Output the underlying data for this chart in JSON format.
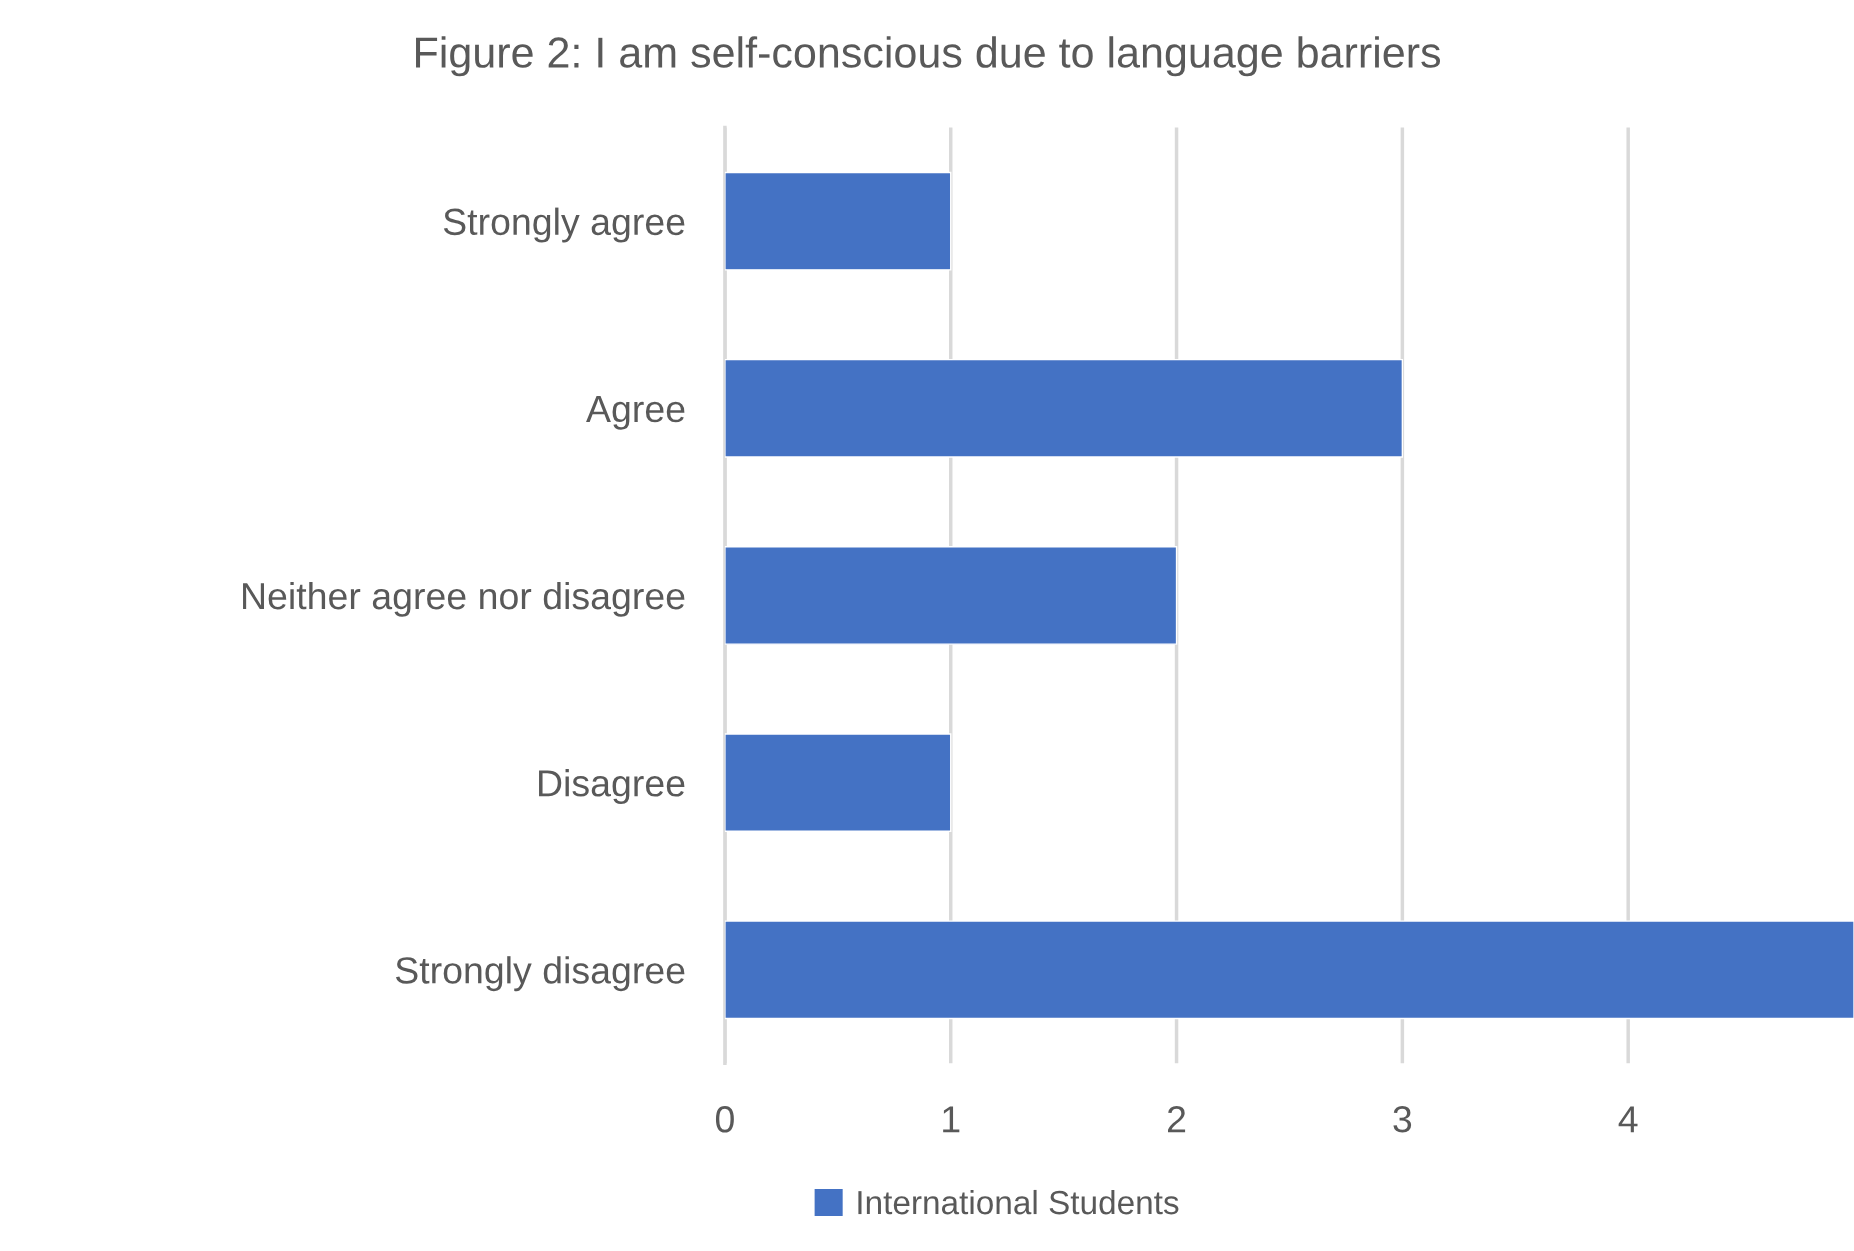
{
  "chart_data": {
    "type": "bar",
    "orientation": "horizontal",
    "title": "Figure 2: I am self-conscious due to language barriers",
    "categories": [
      "Strongly agree",
      "Agree",
      "Neither agree nor disagree",
      "Disagree",
      "Strongly disagree"
    ],
    "series": [
      {
        "name": "International Students",
        "color": "#4472c4",
        "values": [
          1,
          3,
          2,
          1,
          5
        ]
      }
    ],
    "xlim": [
      0,
      5
    ],
    "xticks": [
      0,
      1,
      2,
      3,
      4
    ],
    "grid": "x",
    "legend": "bottom"
  }
}
